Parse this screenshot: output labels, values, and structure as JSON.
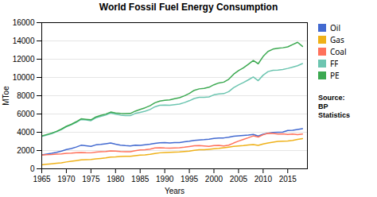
{
  "chart_data": {
    "type": "line",
    "title": "World Fossil Fuel Energy Consumption",
    "xlabel": "Years",
    "ylabel": "MToe",
    "annotation": "Source:\nBP\nStatistics",
    "xlim": [
      1965,
      2019
    ],
    "ylim": [
      0,
      16000
    ],
    "xticks": [
      1965,
      1970,
      1975,
      1980,
      1985,
      1990,
      1995,
      2000,
      2005,
      2010,
      2015
    ],
    "yticks": [
      0,
      2000,
      4000,
      6000,
      8000,
      10000,
      12000,
      14000,
      16000
    ],
    "grid": true,
    "legend": "right",
    "x": [
      1965,
      1966,
      1967,
      1968,
      1969,
      1970,
      1971,
      1972,
      1973,
      1974,
      1975,
      1976,
      1977,
      1978,
      1979,
      1980,
      1981,
      1982,
      1983,
      1984,
      1985,
      1986,
      1987,
      1988,
      1989,
      1990,
      1991,
      1992,
      1993,
      1994,
      1995,
      1996,
      1997,
      1998,
      1999,
      2000,
      2001,
      2002,
      2003,
      2004,
      2005,
      2006,
      2007,
      2008,
      2009,
      2010,
      2011,
      2012,
      2013,
      2014,
      2015,
      2016,
      2017,
      2018
    ],
    "series": [
      {
        "name": "Oil",
        "values": [
          1530,
          1620,
          1700,
          1810,
          1940,
          2110,
          2220,
          2380,
          2580,
          2530,
          2450,
          2620,
          2670,
          2740,
          2820,
          2690,
          2590,
          2540,
          2510,
          2590,
          2570,
          2640,
          2690,
          2780,
          2850,
          2870,
          2820,
          2860,
          2870,
          2950,
          3020,
          3110,
          3160,
          3190,
          3240,
          3320,
          3360,
          3380,
          3460,
          3570,
          3610,
          3660,
          3700,
          3760,
          3590,
          3780,
          3890,
          3970,
          4000,
          4020,
          4190,
          4220,
          4310,
          4400
        ]
      },
      {
        "name": "Gas",
        "values": [
          440,
          490,
          540,
          600,
          660,
          750,
          820,
          900,
          980,
          1000,
          1020,
          1080,
          1140,
          1200,
          1280,
          1300,
          1350,
          1370,
          1380,
          1440,
          1500,
          1520,
          1590,
          1680,
          1750,
          1780,
          1810,
          1830,
          1850,
          1900,
          1940,
          2020,
          2080,
          2080,
          2130,
          2190,
          2230,
          2300,
          2370,
          2450,
          2500,
          2540,
          2600,
          2650,
          2570,
          2720,
          2830,
          2920,
          2990,
          3020,
          3040,
          3100,
          3220,
          3310
        ]
      },
      {
        "name": "Coal",
        "values": [
          1500,
          1540,
          1560,
          1600,
          1640,
          1700,
          1720,
          1760,
          1790,
          1760,
          1750,
          1820,
          1870,
          1890,
          1960,
          1940,
          1890,
          1870,
          1870,
          1970,
          2060,
          2090,
          2160,
          2280,
          2310,
          2280,
          2270,
          2290,
          2310,
          2360,
          2440,
          2530,
          2540,
          2510,
          2460,
          2550,
          2570,
          2510,
          2590,
          2820,
          3030,
          3220,
          3400,
          3600,
          3480,
          3730,
          3890,
          3870,
          3810,
          3820,
          3760,
          3800,
          3740,
          3800
        ]
      },
      {
        "name": "FF",
        "values": [
          3550,
          3700,
          3850,
          4060,
          4290,
          4600,
          4820,
          5080,
          5400,
          5340,
          5270,
          5580,
          5730,
          5880,
          6110,
          5980,
          5880,
          5830,
          5820,
          6060,
          6180,
          6300,
          6490,
          6790,
          6960,
          6980,
          6950,
          7020,
          7080,
          7250,
          7450,
          7700,
          7820,
          7820,
          7870,
          8100,
          8200,
          8230,
          8450,
          8880,
          9180,
          9450,
          9740,
          10050,
          9650,
          10250,
          10640,
          10780,
          10810,
          10870,
          10990,
          11130,
          11280,
          11520
        ]
      },
      {
        "name": "PE",
        "values": [
          3600,
          3750,
          3900,
          4100,
          4350,
          4650,
          4870,
          5150,
          5470,
          5420,
          5360,
          5680,
          5840,
          5990,
          6210,
          6100,
          6060,
          6050,
          6060,
          6310,
          6500,
          6680,
          6900,
          7230,
          7420,
          7500,
          7540,
          7680,
          7780,
          7990,
          8250,
          8590,
          8750,
          8810,
          8930,
          9200,
          9400,
          9490,
          9800,
          10350,
          10750,
          11050,
          11450,
          11850,
          11500,
          12300,
          12850,
          13100,
          13200,
          13250,
          13350,
          13600,
          13850,
          13400
        ]
      }
    ]
  }
}
